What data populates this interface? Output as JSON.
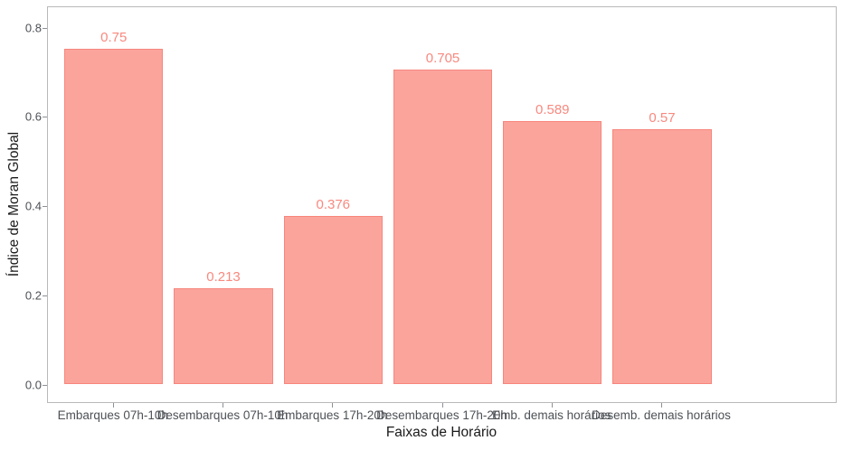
{
  "chart_data": {
    "type": "bar",
    "categories": [
      "Embarques 07h-10h",
      "Desembarques 07h-10h",
      "Embarques 17h-20h",
      "Desembarques 17h-20h",
      "Emb. demais horários",
      "Desemb. demais horários"
    ],
    "values": [
      0.75,
      0.213,
      0.376,
      0.705,
      0.589,
      0.57
    ],
    "value_labels": [
      "0.75",
      "0.213",
      "0.376",
      "0.705",
      "0.589",
      "0.57"
    ],
    "title": "",
    "xlabel": "Faixas de Horário",
    "ylabel": "Índice de Moran Global",
    "y_ticks": [
      "0.0",
      "0.2",
      "0.4",
      "0.6",
      "0.8"
    ],
    "y_tick_values": [
      0.0,
      0.2,
      0.4,
      0.6,
      0.8
    ],
    "ylim": [
      -0.042,
      0.848
    ],
    "grid": false,
    "legend": "none",
    "bar_width_fraction": 0.9,
    "colors": {
      "bar_fill": "#FBA49C",
      "bar_border": "#F6867D",
      "value_label": "#F8897F",
      "axis_text": "#4D5156",
      "tick": "#8C9196",
      "panel_border": "#B9B9B9",
      "axis_title": "#1A1A1A"
    }
  }
}
